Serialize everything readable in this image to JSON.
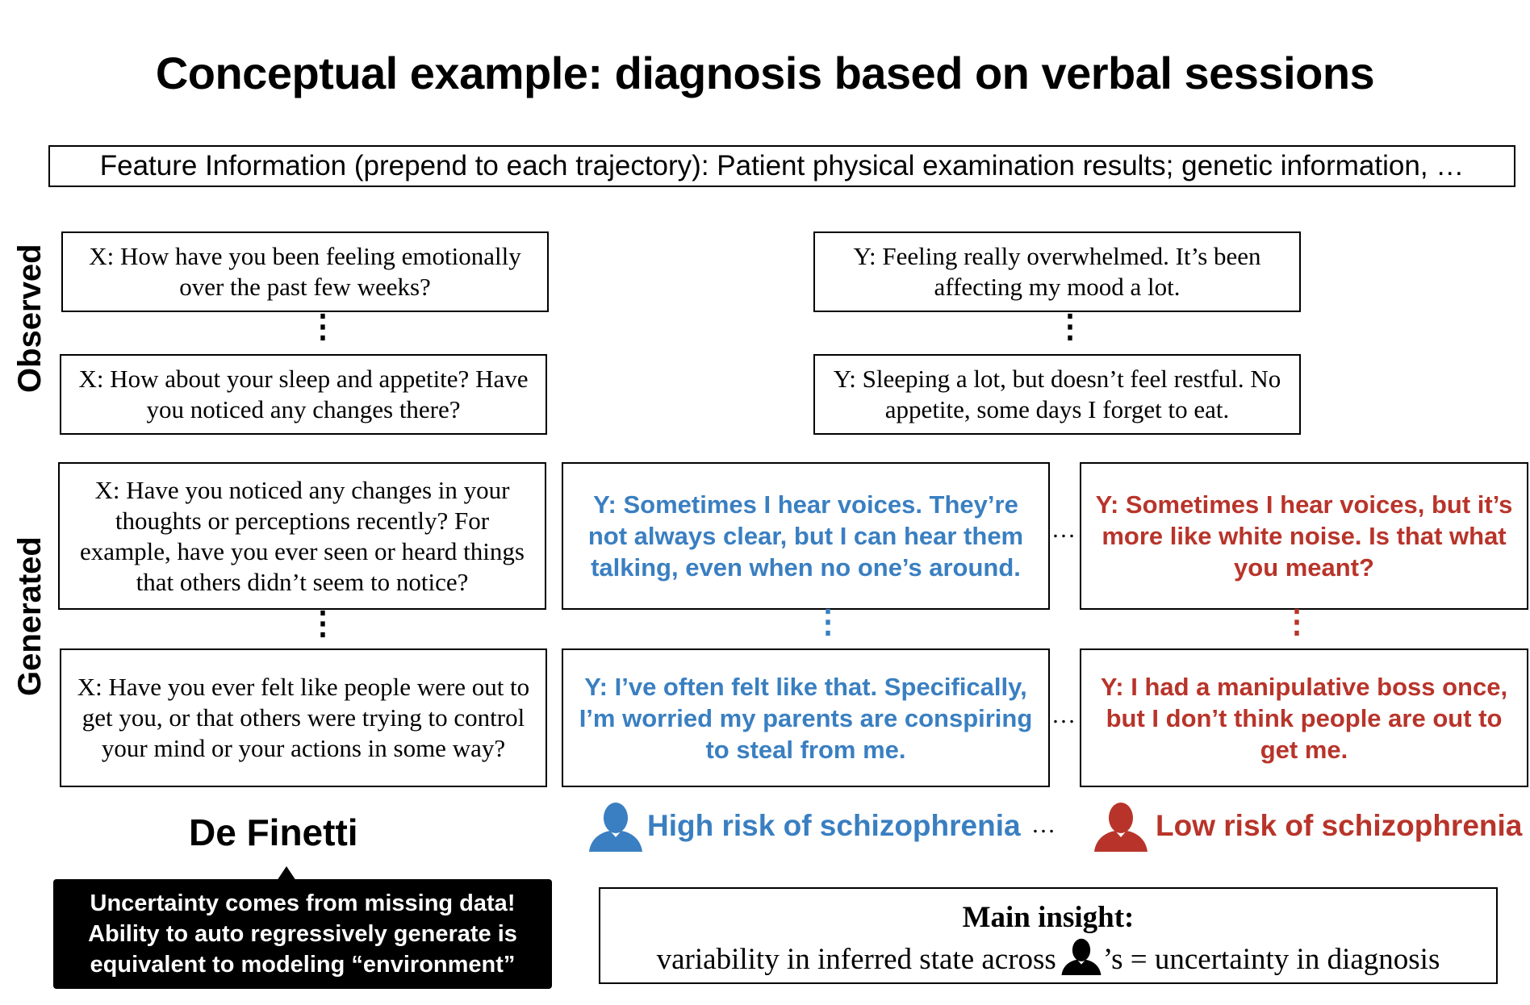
{
  "title": "Conceptual example: diagnosis based on verbal sessions",
  "feature_info": "Feature Information (prepend to each trajectory): Patient physical examination results; genetic information, …",
  "side_labels": {
    "observed": "Observed",
    "generated": "Generated"
  },
  "observed": {
    "x1": "X: How have you been feeling emotionally over the past few weeks?",
    "y1": "Y: Feeling really overwhelmed. It’s been affecting my mood a lot.",
    "x2": "X: How about your sleep and appetite? Have you noticed any changes there?",
    "y2": "Y: Sleeping a lot, but doesn’t feel restful. No appetite, some days I forget to eat."
  },
  "generated": {
    "x1": "X: Have you noticed any changes in your thoughts or perceptions recently? For example, have you ever seen or heard things that others didn’t seem to notice?",
    "y1_blue": "Y: Sometimes I hear voices. They’re not always clear, but I can hear them talking, even when no one’s around.",
    "y1_red": "Y: Sometimes I hear voices, but it’s more like white noise. Is that what you meant?",
    "x2": "X: Have you ever felt like people were out to get you, or that others were trying to control your mind or your actions in some way?",
    "y2_blue": "Y: I’ve often felt like that. Specifically, I’m worried my parents are conspiring to steal from me.",
    "y2_red": "Y: I had a manipulative boss once, but I don’t think people are out to get me."
  },
  "dots": {
    "vertical": "⋮",
    "horizontal": "…"
  },
  "outcomes": {
    "high": "High risk of schizophrenia",
    "low": "Low risk of schizophrenia",
    "between": "…"
  },
  "de_finetti": {
    "label": "De Finetti",
    "callout_lines": [
      "Uncertainty comes from missing data!",
      "Ability to auto regressively generate is",
      "equivalent to modeling “environment”"
    ]
  },
  "insight": {
    "heading": "Main insight:",
    "before": "variability in inferred state across",
    "after": "’s = uncertainty in diagnosis"
  },
  "colors": {
    "blue": "#3a7fc1",
    "red": "#b8342a",
    "black": "#000000"
  },
  "icons": [
    "person-icon-blue",
    "person-icon-red",
    "person-icon-black"
  ]
}
